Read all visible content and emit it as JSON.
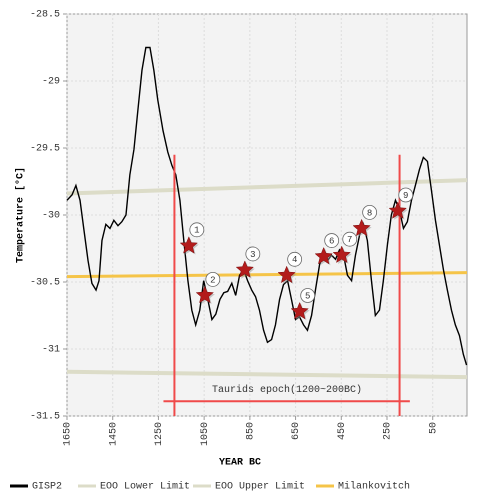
{
  "chart_data": {
    "type": "line",
    "x_label": "YEAR BC",
    "y_label": "Temperature [°C]",
    "xlim": [
      1650,
      -100
    ],
    "xticks": [
      1650,
      1450,
      1250,
      1050,
      850,
      650,
      450,
      250,
      50
    ],
    "ylim": [
      -31.5,
      -28.5
    ],
    "yticks": [
      -28.5,
      -29,
      -29.5,
      -30,
      -30.5,
      -31,
      -31.5
    ],
    "grid": true,
    "legend": "bottom",
    "series": [
      {
        "name": "GISP2",
        "color": "#000000",
        "x": [
          1650,
          1628,
          1611,
          1593,
          1576,
          1558,
          1541,
          1523,
          1510,
          1497,
          1480,
          1462,
          1445,
          1427,
          1410,
          1392,
          1375,
          1357,
          1340,
          1322,
          1305,
          1287,
          1270,
          1253,
          1230,
          1209,
          1191,
          1174,
          1156,
          1139,
          1121,
          1104,
          1087,
          1069,
          1052,
          1034,
          1016,
          999,
          981,
          964,
          947,
          929,
          912,
          895,
          877,
          860,
          842,
          825,
          808,
          790,
          773,
          755,
          738,
          720,
          703,
          685,
          668,
          650,
          633,
          615,
          598,
          580,
          563,
          545,
          528,
          510,
          493,
          475,
          458,
          440,
          423,
          405,
          388,
          370,
          353,
          336,
          318,
          301,
          283,
          266,
          248,
          231,
          213,
          196,
          178,
          161,
          143,
          126,
          108,
          91,
          73,
          56,
          38,
          21,
          3,
          -14,
          -32,
          -49,
          -67,
          -84,
          -98
        ],
        "values": [
          -29.89,
          -29.85,
          -29.78,
          -29.89,
          -30.11,
          -30.34,
          -30.51,
          -30.56,
          -30.49,
          -30.19,
          -30.07,
          -30.1,
          -30.04,
          -30.08,
          -30.05,
          -30.0,
          -29.7,
          -29.51,
          -29.22,
          -28.92,
          -28.75,
          -28.75,
          -28.92,
          -29.14,
          -29.37,
          -29.53,
          -29.63,
          -29.7,
          -29.89,
          -30.19,
          -30.49,
          -30.71,
          -30.82,
          -30.71,
          -30.49,
          -30.63,
          -30.78,
          -30.74,
          -30.63,
          -30.58,
          -30.57,
          -30.51,
          -30.6,
          -30.45,
          -30.41,
          -30.49,
          -30.56,
          -30.61,
          -30.71,
          -30.86,
          -30.95,
          -30.93,
          -30.82,
          -30.63,
          -30.52,
          -30.49,
          -30.63,
          -30.78,
          -30.76,
          -30.82,
          -30.86,
          -30.75,
          -30.56,
          -30.37,
          -30.3,
          -30.34,
          -30.3,
          -30.33,
          -30.26,
          -30.3,
          -30.45,
          -30.49,
          -30.3,
          -30.15,
          -30.07,
          -30.19,
          -30.49,
          -30.75,
          -30.71,
          -30.49,
          -30.22,
          -30.0,
          -29.89,
          -29.96,
          -30.1,
          -30.05,
          -29.89,
          -29.78,
          -29.66,
          -29.57,
          -29.6,
          -29.81,
          -30.04,
          -30.22,
          -30.41,
          -30.56,
          -30.71,
          -30.82,
          -30.9,
          -31.04,
          -31.12
        ]
      },
      {
        "name": "EOO Lower Limit",
        "color": "#dcdcc8",
        "x": [
          1650,
          -100
        ],
        "values": [
          -31.17,
          -31.21
        ]
      },
      {
        "name": "EOO Upper Limit",
        "color": "#dcdcc8",
        "x": [
          1650,
          -100
        ],
        "values": [
          -29.84,
          -29.74
        ]
      },
      {
        "name": "Milankovitch",
        "color": "#f5c448",
        "x": [
          1650,
          -100
        ],
        "values": [
          -30.46,
          -30.43
        ]
      }
    ],
    "markers": [
      {
        "label": "1",
        "x": 1117,
        "y": -30.23
      },
      {
        "label": "2",
        "x": 1047,
        "y": -30.6
      },
      {
        "label": "3",
        "x": 872,
        "y": -30.41
      },
      {
        "label": "4",
        "x": 689,
        "y": -30.45
      },
      {
        "label": "5",
        "x": 632,
        "y": -30.72
      },
      {
        "label": "6",
        "x": 527,
        "y": -30.31
      },
      {
        "label": "7",
        "x": 448,
        "y": -30.3
      },
      {
        "label": "8",
        "x": 361,
        "y": -30.1
      },
      {
        "label": "9",
        "x": 203,
        "y": -29.97
      }
    ],
    "epoch": {
      "text": "Taurids epoch(1200~200BC)",
      "start": 1180,
      "end": 195,
      "line_top": -29.55,
      "bracket_start": 1228,
      "bracket_end": 150,
      "bracket_y": -31.39,
      "color": "#f04a4a"
    }
  }
}
